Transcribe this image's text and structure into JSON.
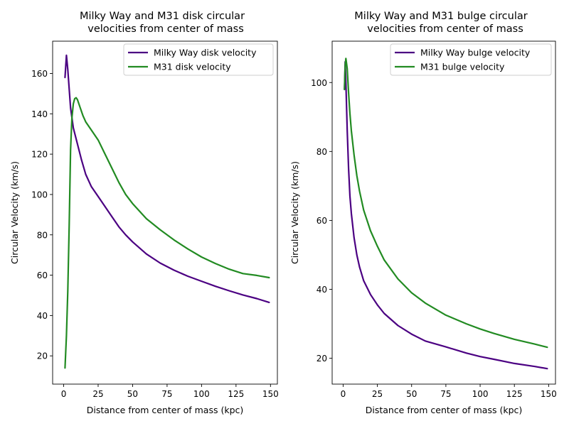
{
  "chart_data": [
    {
      "type": "line",
      "title_line1": "Milky Way and M31 disk circular",
      "title_line2": "velocities from center of mass",
      "xlabel": "Distance from center of mass (kpc)",
      "ylabel": "Circular Velocity (km/s)",
      "xlim": [
        -8,
        155
      ],
      "ylim": [
        6,
        176
      ],
      "xticks": [
        0,
        25,
        50,
        75,
        100,
        125,
        150
      ],
      "yticks": [
        20,
        40,
        60,
        80,
        100,
        120,
        140,
        160
      ],
      "legend": "top-right",
      "grid": false,
      "series": [
        {
          "name": "Milky Way disk velocity",
          "color": "#4b0082",
          "x": [
            1,
            2,
            3,
            5,
            7,
            10,
            13,
            16,
            20,
            25,
            30,
            35,
            40,
            45,
            50,
            60,
            70,
            80,
            90,
            100,
            110,
            120,
            130,
            140,
            149
          ],
          "y": [
            158,
            169,
            162,
            143,
            133,
            125,
            117,
            110,
            104,
            99,
            94,
            89,
            84,
            80,
            76.5,
            70.5,
            66,
            62.5,
            59.5,
            57,
            54.5,
            52.3,
            50.2,
            48.4,
            46.5
          ]
        },
        {
          "name": "M31 disk velocity",
          "color": "#228b22",
          "x": [
            1,
            2,
            3,
            4,
            5,
            6,
            7,
            8,
            9,
            10,
            12,
            14,
            16,
            20,
            25,
            30,
            35,
            40,
            45,
            50,
            60,
            70,
            80,
            90,
            100,
            110,
            120,
            130,
            140,
            149
          ],
          "y": [
            14,
            30,
            52,
            85,
            122,
            138,
            145,
            147.5,
            148,
            147,
            143,
            139,
            136,
            132,
            127,
            120,
            113,
            106,
            100,
            95.5,
            88,
            82.5,
            77.5,
            73,
            69,
            65.8,
            63,
            60.8,
            59.9,
            58.8
          ]
        }
      ]
    },
    {
      "type": "line",
      "title_line1": "Milky Way and M31 bulge circular",
      "title_line2": "velocities from center of mass",
      "xlabel": "Distance from center of mass (kpc)",
      "ylabel": "Circular Velocity (km/s)",
      "xlim": [
        -8,
        155
      ],
      "ylim": [
        12.5,
        112
      ],
      "xticks": [
        0,
        25,
        50,
        75,
        100,
        125,
        150
      ],
      "yticks": [
        20,
        40,
        60,
        80,
        100
      ],
      "legend": "top-right",
      "grid": false,
      "series": [
        {
          "name": "Milky Way bulge velocity",
          "color": "#4b0082",
          "x": [
            1,
            1.5,
            2,
            3,
            4,
            5,
            6,
            8,
            10,
            12,
            15,
            20,
            25,
            30,
            40,
            50,
            60,
            75,
            90,
            100,
            110,
            125,
            140,
            149
          ],
          "y": [
            98,
            106,
            100,
            86,
            75,
            67,
            62,
            55,
            50,
            46.5,
            42.5,
            38.5,
            35.5,
            33,
            29.5,
            27,
            25,
            23.3,
            21.5,
            20.5,
            19.7,
            18.5,
            17.6,
            17
          ]
        },
        {
          "name": "M31 bulge velocity",
          "color": "#228b22",
          "x": [
            1,
            1.5,
            2,
            3,
            4,
            5,
            6,
            8,
            10,
            12,
            15,
            20,
            25,
            30,
            40,
            50,
            60,
            75,
            90,
            100,
            110,
            125,
            140,
            149
          ],
          "y": [
            98,
            105,
            107,
            104,
            97,
            91,
            86,
            79,
            73,
            68.5,
            63,
            57,
            52.5,
            48.5,
            43,
            39,
            36,
            32.5,
            30,
            28.5,
            27.2,
            25.5,
            24.1,
            23.2
          ]
        }
      ]
    }
  ]
}
